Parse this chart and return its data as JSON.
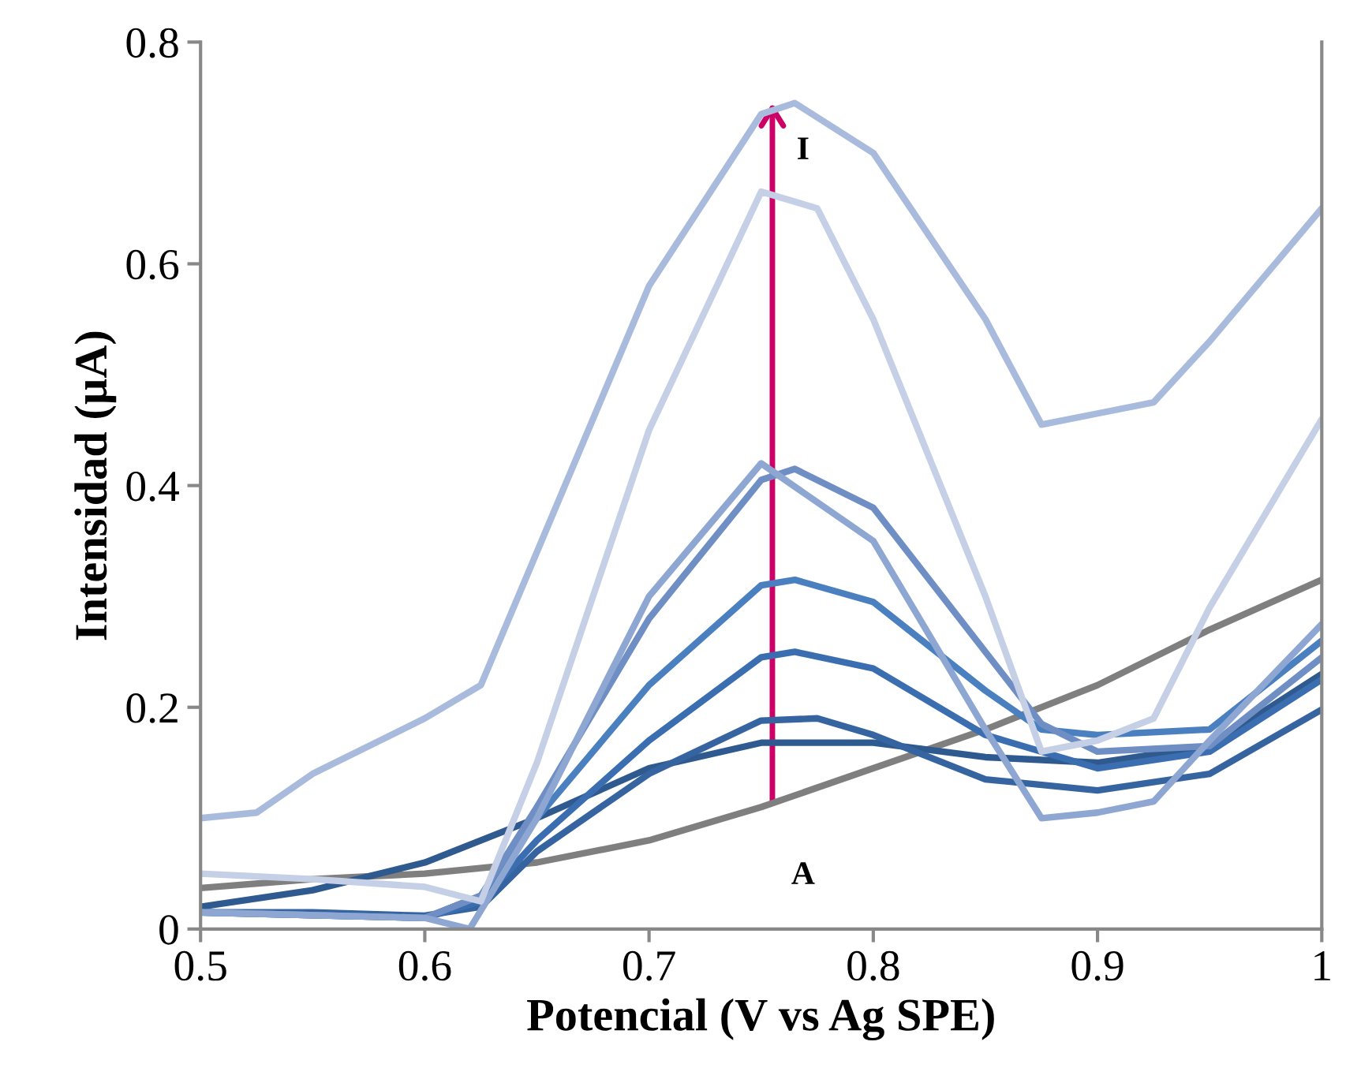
{
  "chart_data": {
    "type": "line",
    "xlabel": "Potencial (V vs Ag SPE)",
    "ylabel": "Intensidad (µA)",
    "xlim": [
      0.5,
      1
    ],
    "xticks": [
      0.5,
      0.6,
      0.7,
      0.8,
      0.9,
      {
        "value": 1,
        "label": "1"
      }
    ],
    "ylim": [
      0,
      0.8
    ],
    "yticks": [
      {
        "value": 0,
        "label": "0"
      },
      0.2,
      0.4,
      0.6,
      0.8
    ],
    "grid": false,
    "legend": false,
    "marker": "none",
    "line_style": "solid",
    "annotations": [
      {
        "text": "I",
        "x": 0.755,
        "y": 0.745
      },
      {
        "text": "A",
        "x": 0.755,
        "y": 0.115
      }
    ],
    "series": [
      {
        "color": "#7f7f7f",
        "x": [
          0.5,
          0.55,
          0.6,
          0.65,
          0.7,
          0.75,
          0.8,
          0.85,
          0.9,
          0.95,
          1.0
        ],
        "values": [
          0.037,
          0.045,
          0.05,
          0.06,
          0.08,
          0.11,
          0.145,
          0.18,
          0.22,
          0.27,
          0.315
        ]
      },
      {
        "color": "#2f5a8f",
        "x": [
          0.5,
          0.55,
          0.6,
          0.65,
          0.7,
          0.75,
          0.8,
          0.85,
          0.9,
          0.95,
          1.0
        ],
        "values": [
          0.02,
          0.035,
          0.06,
          0.1,
          0.145,
          0.168,
          0.168,
          0.155,
          0.15,
          0.165,
          0.23
        ]
      },
      {
        "color": "#3564a0",
        "x": [
          0.5,
          0.55,
          0.6,
          0.625,
          0.65,
          0.7,
          0.75,
          0.775,
          0.8,
          0.85,
          0.9,
          0.95,
          1.0
        ],
        "values": [
          0.015,
          0.015,
          0.012,
          0.02,
          0.07,
          0.14,
          0.188,
          0.19,
          0.175,
          0.135,
          0.125,
          0.14,
          0.198
        ]
      },
      {
        "color": "#3a6eb0",
        "x": [
          0.5,
          0.6,
          0.625,
          0.65,
          0.7,
          0.75,
          0.765,
          0.8,
          0.85,
          0.9,
          0.95,
          1.0
        ],
        "values": [
          0.015,
          0.01,
          0.025,
          0.08,
          0.17,
          0.245,
          0.25,
          0.235,
          0.175,
          0.145,
          0.16,
          0.225
        ]
      },
      {
        "color": "#4a7fc0",
        "x": [
          0.5,
          0.6,
          0.625,
          0.65,
          0.7,
          0.75,
          0.765,
          0.8,
          0.85,
          0.875,
          0.9,
          0.95,
          1.0
        ],
        "values": [
          0.015,
          0.01,
          0.03,
          0.1,
          0.22,
          0.31,
          0.315,
          0.295,
          0.215,
          0.18,
          0.175,
          0.18,
          0.26
        ]
      },
      {
        "color": "#6f8fc4",
        "x": [
          0.5,
          0.6,
          0.625,
          0.65,
          0.7,
          0.75,
          0.765,
          0.8,
          0.85,
          0.875,
          0.9,
          0.95,
          1.0
        ],
        "values": [
          0.015,
          0.01,
          0.03,
          0.11,
          0.28,
          0.405,
          0.415,
          0.38,
          0.25,
          0.185,
          0.16,
          0.165,
          0.245
        ]
      },
      {
        "color": "#8ea6d2",
        "x": [
          0.5,
          0.6,
          0.62,
          0.65,
          0.7,
          0.75,
          0.8,
          0.85,
          0.875,
          0.9,
          0.925,
          0.95,
          1.0
        ],
        "values": [
          0.015,
          0.01,
          0.0,
          0.1,
          0.3,
          0.42,
          0.35,
          0.18,
          0.1,
          0.105,
          0.115,
          0.17,
          0.275
        ]
      },
      {
        "color": "#c5d0e6",
        "x": [
          0.5,
          0.55,
          0.6,
          0.625,
          0.65,
          0.7,
          0.75,
          0.775,
          0.8,
          0.85,
          0.875,
          0.9,
          0.925,
          0.95,
          1.0
        ],
        "values": [
          0.05,
          0.045,
          0.038,
          0.025,
          0.15,
          0.45,
          0.665,
          0.65,
          0.55,
          0.3,
          0.16,
          0.17,
          0.19,
          0.29,
          0.46
        ]
      },
      {
        "color": "#a9bbdc",
        "x": [
          0.5,
          0.525,
          0.55,
          0.6,
          0.625,
          0.65,
          0.7,
          0.75,
          0.765,
          0.8,
          0.85,
          0.875,
          0.9,
          0.925,
          0.95,
          1.0
        ],
        "values": [
          0.1,
          0.105,
          0.14,
          0.19,
          0.22,
          0.34,
          0.58,
          0.735,
          0.745,
          0.7,
          0.55,
          0.455,
          0.465,
          0.475,
          0.53,
          0.65
        ]
      }
    ]
  }
}
